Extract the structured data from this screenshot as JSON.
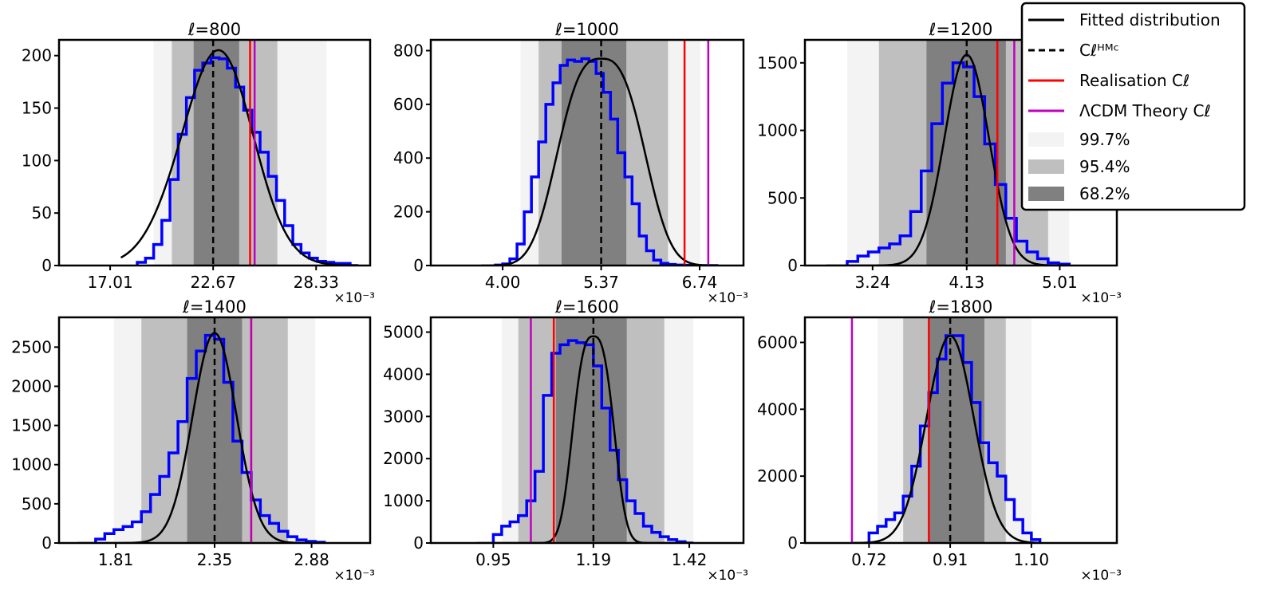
{
  "chart_data": [
    {
      "type": "histogram",
      "title": "ℓ=800",
      "xlim": [
        14.2,
        31.3
      ],
      "ylim": [
        0,
        215
      ],
      "x_ticks": [
        "17.01",
        "22.67",
        "28.33"
      ],
      "x_tick_values": [
        17.01,
        22.67,
        28.33
      ],
      "y_ticks": [
        "0",
        "50",
        "100",
        "150",
        "200"
      ],
      "x_multiplier": "×10⁻³",
      "bands": {
        "99.7": [
          19.4,
          28.9
        ],
        "95.4": [
          20.4,
          26.2
        ],
        "68.2": [
          21.6,
          24.1
        ]
      },
      "hmc_mean": 22.67,
      "realisation": 24.7,
      "lcdm_theory": 24.95,
      "hist_edges": [
        18.5,
        18.95,
        19.4,
        19.85,
        20.3,
        20.75,
        21.2,
        21.65,
        22.1,
        22.55,
        23.0,
        23.45,
        23.9,
        24.35,
        24.8,
        25.25,
        25.7,
        26.15,
        26.6,
        27.05,
        27.5,
        27.95,
        28.4,
        28.85,
        29.3,
        29.75,
        30.2,
        30.65
      ],
      "hist_counts": [
        3,
        7,
        20,
        43,
        82,
        125,
        160,
        186,
        193,
        198,
        197,
        188,
        170,
        148,
        127,
        108,
        85,
        62,
        38,
        20,
        12,
        7,
        4,
        3,
        2,
        2,
        0
      ],
      "fit": {
        "mu": 22.67,
        "sigma": 2.0,
        "amp": 203,
        "skew": 0.15
      }
    },
    {
      "type": "histogram",
      "title": "ℓ=1000",
      "xlim": [
        3.0,
        7.35
      ],
      "ylim": [
        0,
        840
      ],
      "x_ticks": [
        "4.00",
        "5.37",
        "6.74"
      ],
      "x_tick_values": [
        4.0,
        5.37,
        6.74
      ],
      "y_ticks": [
        "0",
        "200",
        "400",
        "600",
        "800"
      ],
      "x_multiplier": "×10⁻³",
      "bands": {
        "99.7": [
          4.25,
          6.75
        ],
        "95.4": [
          4.5,
          6.3
        ],
        "68.2": [
          4.82,
          5.72
        ]
      },
      "hmc_mean": 5.37,
      "realisation": 6.53,
      "lcdm_theory": 6.86,
      "hist_edges": [
        3.9,
        4.0,
        4.1,
        4.2,
        4.3,
        4.4,
        4.5,
        4.6,
        4.7,
        4.8,
        4.9,
        5.0,
        5.1,
        5.2,
        5.3,
        5.4,
        5.5,
        5.6,
        5.7,
        5.8,
        5.9,
        6.0,
        6.1,
        6.2,
        6.3,
        6.4,
        6.5,
        6.6,
        6.7,
        6.8,
        6.9,
        7.0
      ],
      "hist_counts": [
        2,
        6,
        25,
        80,
        200,
        330,
        460,
        600,
        680,
        745,
        765,
        760,
        770,
        760,
        715,
        645,
        545,
        420,
        330,
        230,
        110,
        55,
        20,
        8,
        4,
        2,
        1,
        0,
        0,
        0,
        0
      ],
      "fit": {
        "mu": 5.37,
        "sigma": 0.55,
        "amp": 770,
        "flat": 0.55
      }
    },
    {
      "type": "histogram",
      "title": "ℓ=1200",
      "xlim": [
        2.6,
        5.55
      ],
      "ylim": [
        0,
        1670
      ],
      "x_ticks": [
        "3.24",
        "4.13",
        "5.01"
      ],
      "x_tick_values": [
        3.24,
        4.13,
        5.01
      ],
      "y_ticks": [
        "0",
        "500",
        "1000",
        "1500"
      ],
      "x_multiplier": "×10⁻³",
      "bands": {
        "99.7": [
          3.0,
          5.1
        ],
        "95.4": [
          3.3,
          4.9
        ],
        "68.2": [
          3.75,
          4.5
        ]
      },
      "hmc_mean": 4.13,
      "realisation": 4.42,
      "lcdm_theory": 4.58,
      "hist_edges": [
        3.0,
        3.1,
        3.2,
        3.3,
        3.4,
        3.5,
        3.6,
        3.7,
        3.8,
        3.9,
        4.0,
        4.1,
        4.2,
        4.3,
        4.4,
        4.5,
        4.6,
        4.7,
        4.8,
        4.9,
        5.0,
        5.1
      ],
      "hist_counts": [
        30,
        70,
        100,
        130,
        160,
        220,
        400,
        700,
        1050,
        1350,
        1500,
        1470,
        1250,
        900,
        600,
        350,
        180,
        100,
        50,
        20,
        10
      ],
      "fit": {
        "mu": 4.13,
        "sigma": 0.21,
        "amp": 1560,
        "skew": 0
      }
    },
    {
      "type": "histogram",
      "title": "ℓ=1400",
      "xlim": [
        1.5,
        3.2
      ],
      "ylim": [
        0,
        2880
      ],
      "x_ticks": [
        "1.81",
        "2.35",
        "2.88"
      ],
      "x_tick_values": [
        1.81,
        2.35,
        2.88
      ],
      "y_ticks": [
        "0",
        "500",
        "1000",
        "1500",
        "2000",
        "2500"
      ],
      "x_multiplier": "×10⁻³",
      "bands": {
        "99.7": [
          1.8,
          2.9
        ],
        "95.4": [
          1.95,
          2.75
        ],
        "68.2": [
          2.2,
          2.5
        ]
      },
      "hmc_mean": 2.35,
      "realisation": 2.55,
      "lcdm_theory": 2.55,
      "hist_edges": [
        1.7,
        1.75,
        1.8,
        1.85,
        1.9,
        1.95,
        2.0,
        2.05,
        2.1,
        2.15,
        2.2,
        2.25,
        2.3,
        2.35,
        2.4,
        2.45,
        2.5,
        2.55,
        2.6,
        2.65,
        2.7,
        2.75,
        2.8,
        2.85,
        2.9,
        2.95
      ],
      "hist_counts": [
        50,
        120,
        170,
        210,
        270,
        400,
        620,
        850,
        1150,
        1550,
        2100,
        2450,
        2650,
        2600,
        2050,
        1300,
        900,
        550,
        350,
        250,
        150,
        80,
        40,
        20,
        10
      ],
      "fit": {
        "mu": 2.35,
        "sigma": 0.12,
        "amp": 2680,
        "skew": 0
      }
    },
    {
      "type": "histogram",
      "title": "ℓ=1600",
      "xlim": [
        0.8,
        1.55
      ],
      "ylim": [
        0,
        5350
      ],
      "x_ticks": [
        "0.95",
        "1.19",
        "1.42"
      ],
      "x_tick_values": [
        0.95,
        1.19,
        1.42
      ],
      "y_ticks": [
        "0",
        "1000",
        "2000",
        "3000",
        "4000",
        "5000"
      ],
      "x_multiplier": "×10⁻³",
      "bands": {
        "99.7": [
          0.97,
          1.43
        ],
        "95.4": [
          1.01,
          1.36
        ],
        "68.2": [
          1.1,
          1.27
        ]
      },
      "hmc_mean": 1.19,
      "realisation": 1.095,
      "lcdm_theory": 1.04,
      "hist_edges": [
        0.95,
        0.97,
        0.99,
        1.01,
        1.03,
        1.05,
        1.07,
        1.09,
        1.11,
        1.13,
        1.15,
        1.17,
        1.19,
        1.21,
        1.23,
        1.25,
        1.27,
        1.29,
        1.31,
        1.33,
        1.35,
        1.37,
        1.39,
        1.41,
        1.43
      ],
      "hist_counts": [
        200,
        400,
        500,
        650,
        1000,
        1700,
        3500,
        4500,
        4700,
        4800,
        4750,
        4700,
        4200,
        3200,
        2200,
        1500,
        1000,
        700,
        400,
        250,
        150,
        80,
        30,
        0
      ],
      "fit": {
        "mu": 1.19,
        "sigma": 0.045,
        "amp": 4900,
        "flat": 0.45
      }
    },
    {
      "type": "histogram",
      "title": "ℓ=1800",
      "xlim": [
        0.57,
        1.3
      ],
      "ylim": [
        0,
        6750
      ],
      "x_ticks": [
        "0.72",
        "0.91",
        "1.10"
      ],
      "x_tick_values": [
        0.72,
        0.91,
        1.1
      ],
      "y_ticks": [
        "0",
        "2000",
        "4000",
        "6000"
      ],
      "x_multiplier": "×10⁻³",
      "bands": {
        "99.7": [
          0.74,
          1.1
        ],
        "95.4": [
          0.8,
          1.04
        ],
        "68.2": [
          0.86,
          0.99
        ]
      },
      "hmc_mean": 0.91,
      "realisation": 0.86,
      "lcdm_theory": 0.68,
      "hist_edges": [
        0.72,
        0.74,
        0.76,
        0.78,
        0.8,
        0.82,
        0.84,
        0.86,
        0.88,
        0.9,
        0.92,
        0.94,
        0.96,
        0.98,
        1.0,
        1.02,
        1.04,
        1.06,
        1.08,
        1.1,
        1.12
      ],
      "hist_counts": [
        300,
        500,
        700,
        900,
        1400,
        2300,
        3500,
        4500,
        5500,
        6200,
        6200,
        5400,
        4200,
        3000,
        2400,
        2000,
        1300,
        700,
        300,
        100
      ],
      "fit": {
        "mu": 0.91,
        "sigma": 0.055,
        "amp": 6200,
        "skew": 0
      }
    }
  ],
  "legend": {
    "entries": [
      {
        "kind": "solid-line",
        "color": "#000000",
        "label": "Fitted distribution"
      },
      {
        "kind": "dashed-line",
        "color": "#000000",
        "label": "Cℓᴴᴹᶜ"
      },
      {
        "kind": "solid-line",
        "color": "#ff0000",
        "label": "Realisation Cℓ"
      },
      {
        "kind": "solid-line",
        "color": "#bf00bf",
        "label": "ΛCDM Theory Cℓ"
      },
      {
        "kind": "patch",
        "color": "#f3f3f3",
        "label": "99.7%"
      },
      {
        "kind": "patch",
        "color": "#bfbfbf",
        "label": "95.4%"
      },
      {
        "kind": "patch",
        "color": "#808080",
        "label": "68.2%"
      }
    ],
    "placement": "top-right"
  },
  "colors": {
    "histogram": "#0000ff",
    "fit": "#000000",
    "realisation": "#ff0000",
    "lcdm": "#bf00bf",
    "band_99_7": "#f3f3f3",
    "band_95_4": "#bfbfbf",
    "band_68_2": "#808080"
  }
}
